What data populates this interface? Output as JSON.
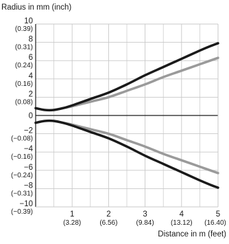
{
  "chart_data": {
    "type": "line",
    "ylabel": "Radius in mm (inch)",
    "xlabel": "Distance in m (feet)",
    "xlim": [
      0,
      5
    ],
    "ylim": [
      -10,
      10
    ],
    "grid": true,
    "x_ticks": [
      {
        "value": 1,
        "label": "1",
        "sublabel": "(3.28)"
      },
      {
        "value": 2,
        "label": "2",
        "sublabel": "(6.56)"
      },
      {
        "value": 3,
        "label": "3",
        "sublabel": "(9.84)"
      },
      {
        "value": 4,
        "label": "4",
        "sublabel": "(13.12)"
      },
      {
        "value": 5,
        "label": "5",
        "sublabel": "(16.40)"
      }
    ],
    "y_ticks": [
      {
        "value": 10,
        "label": "10",
        "sublabel": "(0.39)"
      },
      {
        "value": 8,
        "label": "8",
        "sublabel": "(0.31)"
      },
      {
        "value": 6,
        "label": "6",
        "sublabel": "(0.24)"
      },
      {
        "value": 4,
        "label": "4",
        "sublabel": "(0.16)"
      },
      {
        "value": 2,
        "label": "2",
        "sublabel": "(0.08)"
      },
      {
        "value": 0,
        "label": "0",
        "sublabel": ""
      },
      {
        "value": -2,
        "label": "−2",
        "sublabel": "(−0.08)"
      },
      {
        "value": -4,
        "label": "−4",
        "sublabel": "(−0.16)"
      },
      {
        "value": -6,
        "label": "−6",
        "sublabel": "(−0.24)"
      },
      {
        "value": -8,
        "label": "−8",
        "sublabel": "(−0.31)"
      },
      {
        "value": -10,
        "label": "−10",
        "sublabel": "(−0.39)"
      }
    ],
    "series": [
      {
        "color": "#1a1a1a",
        "width": 3.5,
        "x": [
          0,
          0.25,
          0.5,
          0.75,
          1,
          1.5,
          2,
          2.5,
          3,
          3.5,
          4,
          4.5,
          4.8,
          5
        ],
        "y": [
          0.8,
          0.6,
          0.6,
          0.8,
          1.1,
          1.8,
          2.5,
          3.4,
          4.4,
          5.3,
          6.2,
          7.1,
          7.6,
          7.9
        ]
      },
      {
        "color": "#1a1a1a",
        "width": 3.5,
        "x": [
          0,
          0.25,
          0.5,
          0.75,
          1,
          1.5,
          2,
          2.5,
          3,
          3.5,
          4,
          4.5,
          4.8,
          5
        ],
        "y": [
          -0.8,
          -0.6,
          -0.6,
          -0.8,
          -1.1,
          -1.8,
          -2.5,
          -3.4,
          -4.4,
          -5.3,
          -6.2,
          -7.1,
          -7.6,
          -7.9
        ]
      },
      {
        "color": "#9a9a9a",
        "width": 3.5,
        "x": [
          0.5,
          0.75,
          1,
          1.5,
          2,
          2.5,
          3,
          3.5,
          4,
          4.5,
          5
        ],
        "y": [
          0.6,
          0.8,
          1.0,
          1.5,
          2.0,
          2.7,
          3.4,
          4.2,
          4.9,
          5.6,
          6.3
        ]
      },
      {
        "color": "#9a9a9a",
        "width": 3.5,
        "x": [
          0.5,
          0.75,
          1,
          1.5,
          2,
          2.5,
          3,
          3.5,
          4,
          4.5,
          5
        ],
        "y": [
          -0.6,
          -0.8,
          -1.0,
          -1.5,
          -2.0,
          -2.7,
          -3.4,
          -4.2,
          -4.9,
          -5.6,
          -6.3
        ]
      }
    ]
  }
}
